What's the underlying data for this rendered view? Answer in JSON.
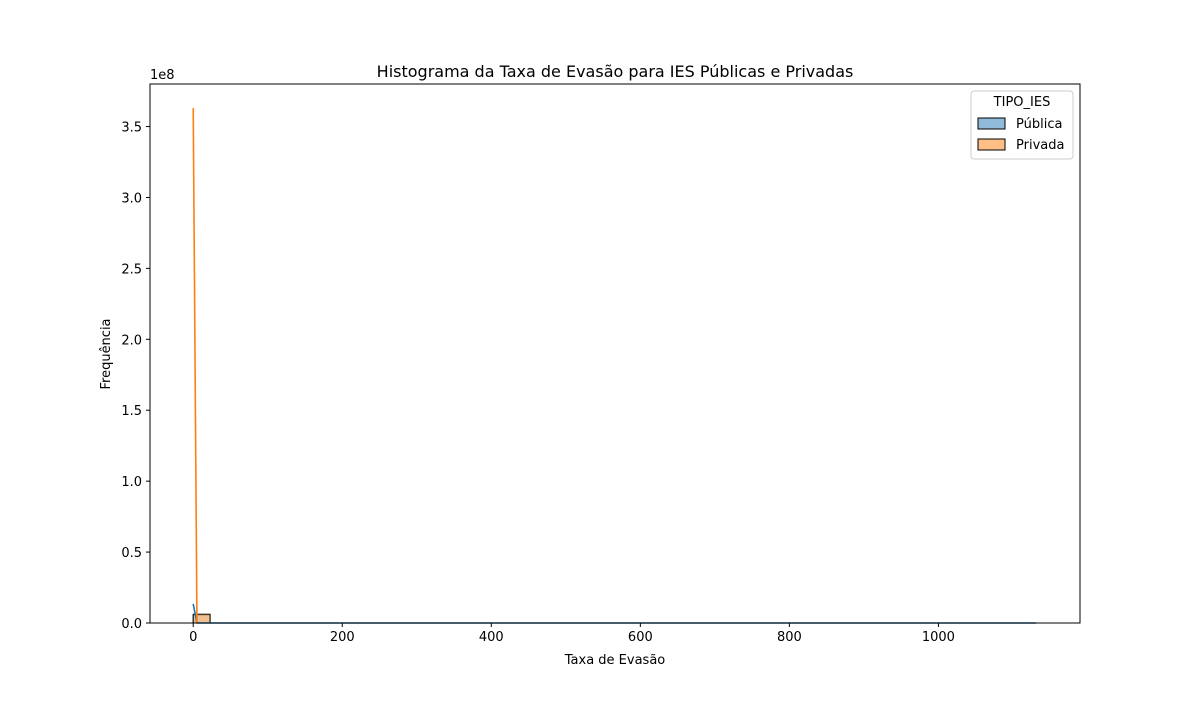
{
  "chart_data": {
    "type": "histogram",
    "title": "Histograma da Taxa de Evasão para IES Públicas e Privadas",
    "xlabel": "Taxa de Evasão",
    "ylabel": "Frequência",
    "y_offset_text": "1e8",
    "y_scale_factor": 100000000,
    "xlim": [
      -58,
      1190
    ],
    "ylim": [
      0,
      380000000
    ],
    "x_ticks": [
      0,
      200,
      400,
      600,
      800,
      1000
    ],
    "x_tick_labels": [
      "0",
      "200",
      "400",
      "600",
      "800",
      "1000"
    ],
    "y_ticks": [
      0,
      50000000,
      100000000,
      150000000,
      200000000,
      250000000,
      300000000,
      350000000
    ],
    "y_tick_labels": [
      "0.0",
      "0.5",
      "1.0",
      "1.5",
      "2.0",
      "2.5",
      "3.0",
      "3.5"
    ],
    "grid": false,
    "legend": {
      "title": "TIPO_IES",
      "placement": "top-right",
      "entries": [
        {
          "label": "Pública",
          "color": "#1f77b4",
          "fill": "#8fbbd9"
        },
        {
          "label": "Privada",
          "color": "#ff7f0e",
          "fill": "#ffbf86"
        }
      ]
    },
    "series": [
      {
        "name": "Pública",
        "color": "#1f77b4",
        "fill": "#8fbbd9",
        "bins": [
          {
            "x0": 0,
            "x1": 22.6,
            "value": 5400000
          },
          {
            "x0": 22.6,
            "x1": 1131,
            "value": 0
          }
        ],
        "kde": [
          [
            0,
            13500000
          ],
          [
            5,
            0
          ],
          [
            200,
            0
          ],
          [
            500,
            0
          ],
          [
            1000,
            0
          ],
          [
            1131,
            0
          ]
        ]
      },
      {
        "name": "Privada",
        "color": "#ff7f0e",
        "fill": "#ffbf86",
        "bins": [
          {
            "x0": 0,
            "x1": 22.6,
            "value": 6200000
          }
        ],
        "kde": [
          [
            0,
            363000000
          ],
          [
            5,
            0
          ]
        ]
      }
    ]
  }
}
